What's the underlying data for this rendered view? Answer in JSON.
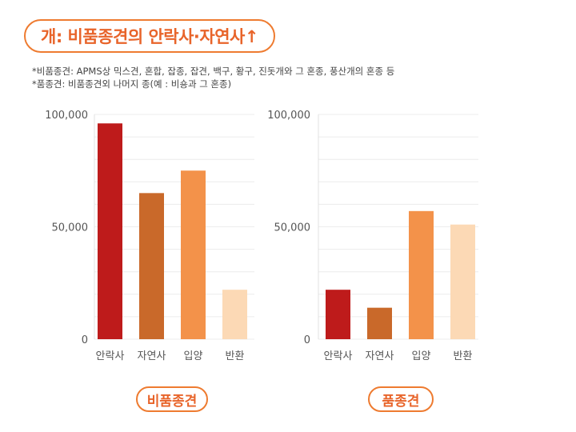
{
  "title": "개: 비품종견의 안락사·자연사↑",
  "notes": [
    "*비품종견: APMS상 믹스견, 혼합, 잡종, 잡견, 백구, 황구, 진돗개와 그 혼종, 풍산개의 혼종 등",
    "*품종견: 비품종견외 나머지 종(예 : 비숑과 그 혼종)"
  ],
  "chart_data": [
    {
      "type": "bar",
      "caption": "비품종견",
      "categories": [
        "안락사",
        "자연사",
        "입양",
        "반환"
      ],
      "values": [
        96000,
        65000,
        75000,
        22000
      ],
      "yticks": [
        "0",
        "50,000",
        "100,000"
      ],
      "ylim": [
        0,
        100000
      ],
      "colors": [
        "#be1b1b",
        "#c9692a",
        "#f3924a",
        "#fcd9b5"
      ]
    },
    {
      "type": "bar",
      "caption": "품종견",
      "categories": [
        "안락사",
        "자연사",
        "입양",
        "반환"
      ],
      "values": [
        22000,
        14000,
        57000,
        51000
      ],
      "yticks": [
        "0",
        "50,000",
        "100,000"
      ],
      "ylim": [
        0,
        100000
      ],
      "colors": [
        "#be1b1b",
        "#c9692a",
        "#f3924a",
        "#fcd9b5"
      ]
    }
  ]
}
